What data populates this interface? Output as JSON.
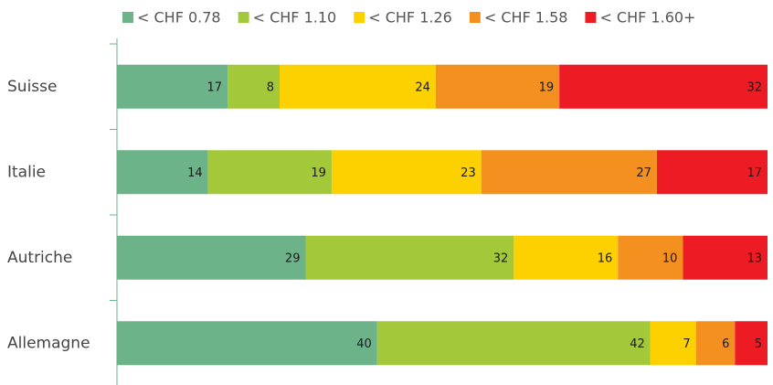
{
  "chart_data": {
    "type": "stacked-bar-horizontal",
    "categories": [
      "Suisse",
      "Italie",
      "Autriche",
      "Allemagne"
    ],
    "series": [
      {
        "name": "< CHF 0.78",
        "color": "#6db38a",
        "values": [
          17,
          14,
          29,
          40
        ]
      },
      {
        "name": "< CHF 1.10",
        "color": "#a3c93a",
        "values": [
          8,
          19,
          32,
          42
        ]
      },
      {
        "name": "< CHF 1.26",
        "color": "#fdd000",
        "values": [
          24,
          23,
          16,
          7
        ]
      },
      {
        "name": "< CHF 1.58",
        "color": "#f39020",
        "values": [
          19,
          27,
          10,
          6
        ]
      },
      {
        "name": "< CHF 1.60+",
        "color": "#ed1c24",
        "values": [
          32,
          17,
          13,
          5
        ]
      }
    ],
    "xlim": [
      0,
      100
    ],
    "legend": "top"
  }
}
